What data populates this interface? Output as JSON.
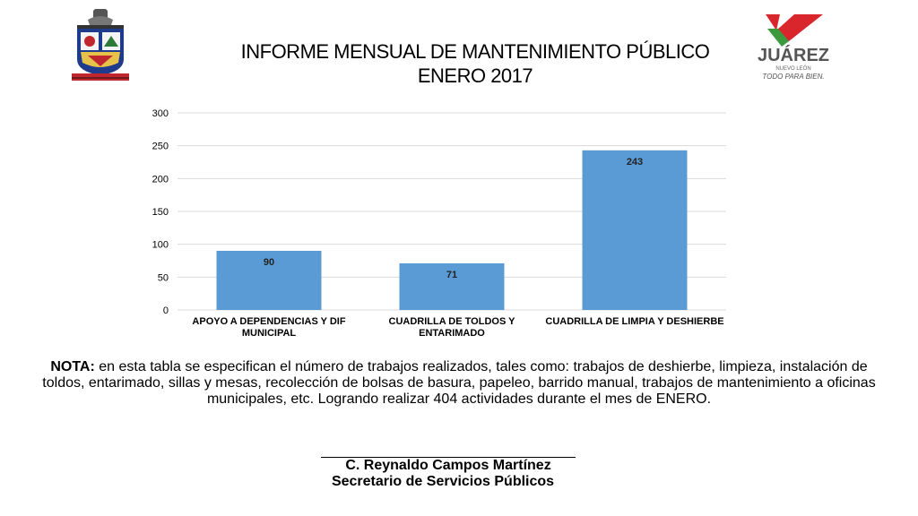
{
  "header": {
    "title_line1": "INFORME MENSUAL DE MANTENIMIENTO PÚBLICO",
    "title_line2": "ENERO 2017"
  },
  "logos": {
    "left": {
      "icon": "state-coat-of-arms-icon"
    },
    "right": {
      "icon": "juarez-logo-icon",
      "name": "JUÁREZ",
      "state": "NUEVO LEÓN",
      "slogan": "TODO PARA BIEN."
    }
  },
  "chart_data": {
    "type": "bar",
    "categories": [
      [
        "APOYO A DEPENDENCIAS Y DIF",
        "MUNICIPAL"
      ],
      [
        "CUADRILLA DE TOLDOS Y",
        "ENTARIMADO"
      ],
      [
        "CUADRILLA DE LIMPIA Y DESHIERBE"
      ]
    ],
    "values": [
      90,
      71,
      243
    ],
    "data_labels": [
      "90",
      "71",
      "243"
    ],
    "ylim": [
      0,
      300
    ],
    "yticks": [
      0,
      50,
      100,
      150,
      200,
      250,
      300
    ],
    "grid": true,
    "bar_color": "#5b9bd5",
    "grid_color": "#d9d9d9"
  },
  "note": {
    "label": "NOTA:",
    "text": " en esta tabla se especifican el número de trabajos realizados, tales como: trabajos de deshierbe, limpieza, instalación de toldos, entarimado, sillas y mesas, recolección de bolsas de basura, papeleo, barrido manual, trabajos de mantenimiento a oficinas municipales, etc. Logrando realizar 404 actividades durante el mes de ENERO."
  },
  "signature": {
    "name": "C. Reynaldo Campos Martínez",
    "role": "Secretario de Servicios Públicos"
  }
}
